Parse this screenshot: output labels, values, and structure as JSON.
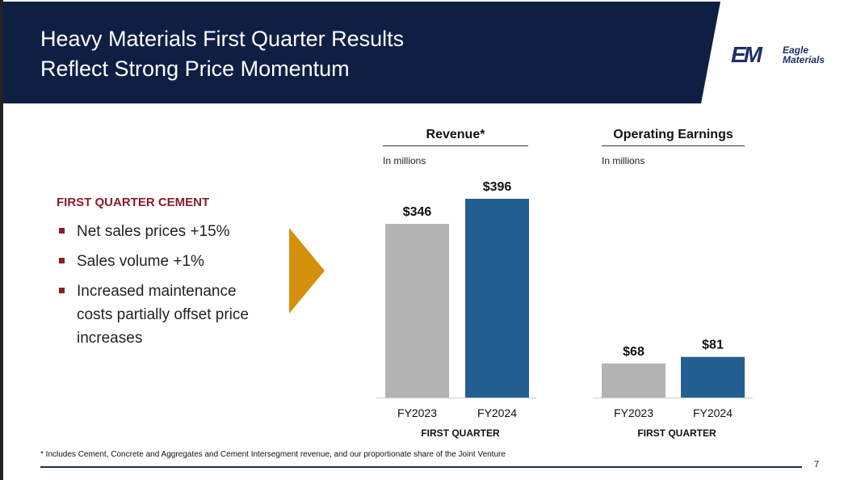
{
  "header": {
    "title_line1": "Heavy Materials First Quarter Results",
    "title_line2": "Reflect Strong Price Momentum"
  },
  "logo": {
    "mark": "EM",
    "text_line1": "Eagle",
    "text_line2": "Materials"
  },
  "left_panel": {
    "section_title": "FIRST QUARTER CEMENT",
    "bullets": [
      "Net sales prices +15%",
      "Sales volume +1%",
      "Increased maintenance costs partially offset price increases"
    ]
  },
  "colors": {
    "header_bg": "#0f1f44",
    "accent_red": "#8b1c2b",
    "arrow": "#d4900a",
    "bar_prior": "#b3b3b3",
    "bar_current": "#235e92"
  },
  "chart_data": [
    {
      "type": "bar",
      "title": "Revenue*",
      "unit_note": "In millions",
      "categories": [
        "FY2023",
        "FY2024"
      ],
      "values": [
        346,
        396
      ],
      "value_labels": [
        "$346",
        "$396"
      ],
      "xlabel": "FIRST QUARTER",
      "ylim": [
        0,
        396
      ]
    },
    {
      "type": "bar",
      "title": "Operating Earnings",
      "unit_note": "In millions",
      "categories": [
        "FY2023",
        "FY2024"
      ],
      "values": [
        68,
        81
      ],
      "value_labels": [
        "$68",
        "$81"
      ],
      "xlabel": "FIRST QUARTER",
      "ylim": [
        0,
        396
      ]
    }
  ],
  "footer": {
    "footnote": "* Includes Cement, Concrete and Aggregates and Cement Intersegment revenue, and our proportionate share of the Joint Venture",
    "page_number": "7"
  }
}
